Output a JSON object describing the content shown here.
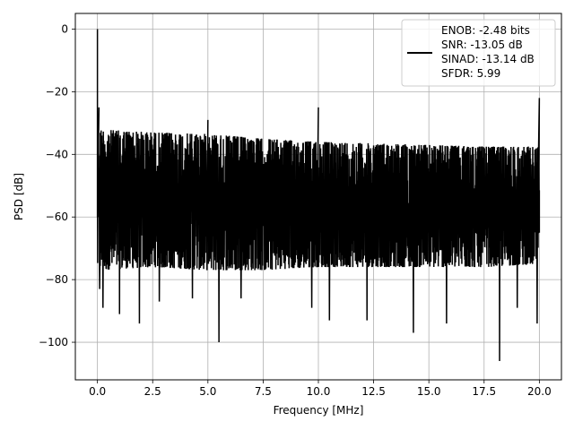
{
  "chart_data": {
    "type": "line",
    "title": "",
    "xlabel": "Frequency [MHz]",
    "ylabel": "PSD [dB]",
    "xlim": [
      -1.0,
      21.0
    ],
    "ylim": [
      -112,
      5
    ],
    "grid": true,
    "legend_position": "top-right",
    "x_ticks": [
      0.0,
      2.5,
      5.0,
      7.5,
      10.0,
      12.5,
      15.0,
      17.5,
      20.0
    ],
    "x_tick_labels": [
      "0.0",
      "2.5",
      "5.0",
      "7.5",
      "10.0",
      "12.5",
      "15.0",
      "17.5",
      "20.0"
    ],
    "y_ticks": [
      0,
      -20,
      -40,
      -60,
      -80,
      -100
    ],
    "y_tick_labels": [
      "0",
      "−20",
      "−40",
      "−60",
      "−80",
      "−100"
    ],
    "series": [
      {
        "name": "ENOB: -2.48 bits\nSNR: -13.05 dB\nSINAD: -13.14 dB\nSFDR: 5.99",
        "color": "#000000",
        "x_range": [
          0.0,
          20.0
        ],
        "noise_floor_top": [
          [
            0.0,
            -32
          ],
          [
            2.5,
            -33
          ],
          [
            5.0,
            -33.5
          ],
          [
            7.5,
            -35
          ],
          [
            10.0,
            -36
          ],
          [
            12.5,
            -36.5
          ],
          [
            15.0,
            -37
          ],
          [
            17.5,
            -37.5
          ],
          [
            20.0,
            -37.5
          ]
        ],
        "noise_floor_bottom": [
          [
            0.0,
            -77
          ],
          [
            2.5,
            -76
          ],
          [
            5.0,
            -77
          ],
          [
            7.5,
            -77
          ],
          [
            10.0,
            -76
          ],
          [
            12.5,
            -76
          ],
          [
            15.0,
            -76
          ],
          [
            17.5,
            -76
          ],
          [
            20.0,
            -75
          ]
        ],
        "peaks": [
          {
            "x": 0.0,
            "y": 0
          },
          {
            "x": 0.07,
            "y": -25
          },
          {
            "x": 5.0,
            "y": -29
          },
          {
            "x": 10.0,
            "y": -25
          },
          {
            "x": 20.0,
            "y": -22
          }
        ],
        "dips": [
          {
            "x": 0.1,
            "y": -83
          },
          {
            "x": 0.25,
            "y": -89
          },
          {
            "x": 1.0,
            "y": -91
          },
          {
            "x": 1.9,
            "y": -94
          },
          {
            "x": 2.8,
            "y": -87
          },
          {
            "x": 4.3,
            "y": -86
          },
          {
            "x": 5.5,
            "y": -100
          },
          {
            "x": 6.5,
            "y": -86
          },
          {
            "x": 9.7,
            "y": -89
          },
          {
            "x": 10.5,
            "y": -93
          },
          {
            "x": 12.2,
            "y": -93
          },
          {
            "x": 14.3,
            "y": -97
          },
          {
            "x": 15.8,
            "y": -94
          },
          {
            "x": 18.2,
            "y": -106
          },
          {
            "x": 19.0,
            "y": -89
          },
          {
            "x": 19.9,
            "y": -94
          }
        ]
      }
    ]
  },
  "legend": {
    "lines": [
      "ENOB: -2.48 bits",
      "SNR: -13.05 dB",
      "SINAD: -13.14 dB",
      "SFDR: 5.99"
    ]
  }
}
